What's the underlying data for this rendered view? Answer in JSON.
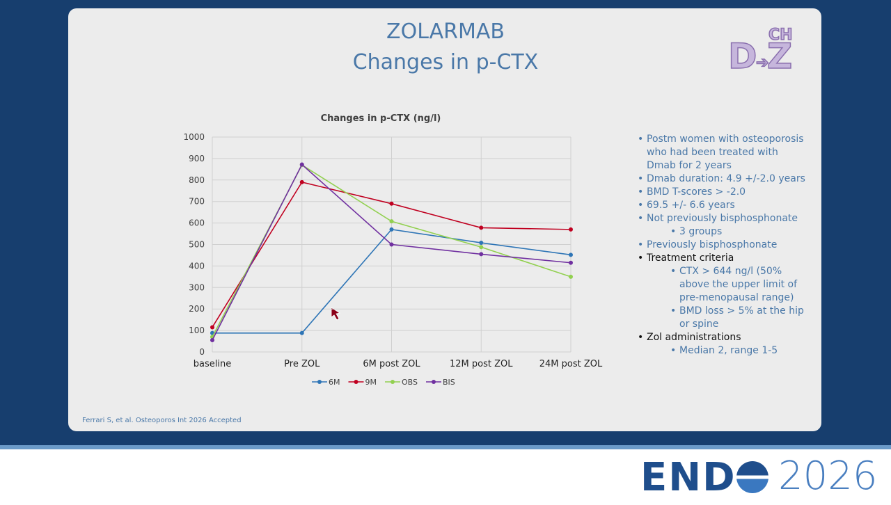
{
  "slide": {
    "title": "ZOLARMAB",
    "subtitle": "Changes in p-CTX",
    "citation": "Ferrari S, et al. Osteoporos Int 2026 Accepted",
    "logo": {
      "top": "CH",
      "left": "D",
      "right": "Z"
    },
    "footer": {
      "brand": "END",
      "year": "2026"
    },
    "bullets": [
      {
        "text": "Postm women with osteoporosis who had been treated with Dmab for 2 years",
        "level": 1,
        "color": "#4a78a8"
      },
      {
        "text": "Dmab duration: 4.9 +/-2.0 years",
        "level": 1,
        "color": "#4a78a8"
      },
      {
        "text": "BMD T-scores > -2.0",
        "level": 1,
        "color": "#4a78a8"
      },
      {
        "text": "69.5 +/- 6.6 years",
        "level": 1,
        "color": "#4a78a8"
      },
      {
        "text": "Not previously bisphosphonate",
        "level": 1,
        "color": "#4a78a8"
      },
      {
        "text": "3 groups",
        "level": 2,
        "color": "#4a78a8"
      },
      {
        "text": "Previously bisphosphonate",
        "level": 1,
        "color": "#4a78a8"
      },
      {
        "text": "Treatment criteria",
        "level": 1,
        "color": "#111111"
      },
      {
        "text": "CTX > 644 ng/l (50% above the upper limit of pre-menopausal range)",
        "level": 2,
        "color": "#4a78a8"
      },
      {
        "text": "BMD loss > 5% at the hip or spine",
        "level": 2,
        "color": "#4a78a8"
      },
      {
        "text": "Zol administrations",
        "level": 1,
        "color": "#111111"
      },
      {
        "text": "Median 2, range 1-5",
        "level": 2,
        "color": "#4a78a8"
      }
    ]
  },
  "chart_data": {
    "type": "line",
    "title": "Changes in p-CTX (ng/l)",
    "categories": [
      "baseline",
      "Pre ZOL",
      "6M post ZOL",
      "12M post ZOL",
      "24M post ZOL"
    ],
    "series": [
      {
        "name": "6M",
        "color": "#2e75b6",
        "values": [
          88,
          88,
          570,
          508,
          452
        ]
      },
      {
        "name": "9M",
        "color": "#c00020",
        "values": [
          115,
          790,
          690,
          578,
          570
        ]
      },
      {
        "name": "OBS",
        "color": "#92d050",
        "values": [
          70,
          870,
          608,
          488,
          350
        ]
      },
      {
        "name": "BIS",
        "color": "#7030a0",
        "values": [
          55,
          872,
          500,
          455,
          415
        ]
      }
    ],
    "ylim": [
      0,
      1000
    ],
    "yticks": [
      0,
      100,
      200,
      300,
      400,
      500,
      600,
      700,
      800,
      900,
      1000
    ],
    "grid": true,
    "legend": "bottom"
  }
}
